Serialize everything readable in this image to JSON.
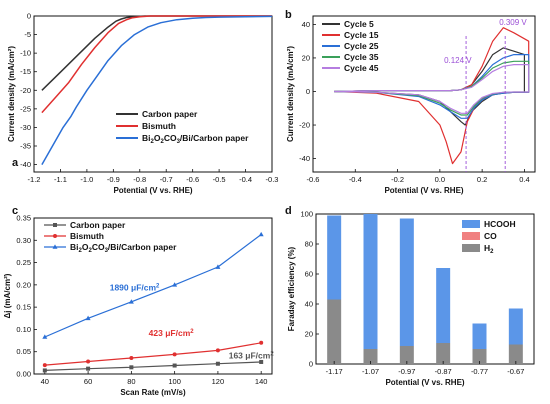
{
  "chart_data": [
    {
      "panel": "a",
      "type": "line",
      "xlabel": "Potential (V vs. RHE)",
      "ylabel": "Current density (mA/cm²)",
      "xlim": [
        -1.2,
        -0.3
      ],
      "ylim": [
        -42,
        0
      ],
      "xticks": [
        -1.2,
        -1.1,
        -1.0,
        -0.9,
        -0.8,
        -0.7,
        -0.6,
        -0.5,
        -0.4,
        -0.3
      ],
      "xtick_labels": [
        "-1.2",
        "-1.1",
        "-1.0",
        "-0.9",
        "-0.8",
        "-0.7",
        "-0.6",
        "-0.5",
        "-0.4",
        "-0.3"
      ],
      "yticks": [
        0,
        -5,
        -10,
        -15,
        -20,
        -25,
        -30,
        -35,
        -40
      ],
      "ytick_labels": [
        "0",
        "-5",
        "-10",
        "-15",
        "-20",
        "-25",
        "-30",
        "-35",
        "-40"
      ],
      "legend_position": "bottom-right",
      "series": [
        {
          "name": "Carbon paper",
          "color": "#333333",
          "x": [
            -1.17,
            -1.12,
            -1.07,
            -1.02,
            -0.97,
            -0.92,
            -0.89,
            -0.87,
            -0.85,
            -0.82,
            -0.78,
            -0.7,
            -0.6,
            -0.5,
            -0.4,
            -0.3
          ],
          "y": [
            -20,
            -16.5,
            -13,
            -9.5,
            -6,
            -3,
            -1.4,
            -0.8,
            -0.4,
            -0.15,
            0,
            0,
            0,
            0,
            0,
            0
          ]
        },
        {
          "name": "Bismuth",
          "color": "#e03030",
          "x": [
            -1.17,
            -1.12,
            -1.07,
            -1.02,
            -0.97,
            -0.92,
            -0.88,
            -0.85,
            -0.83,
            -0.8,
            -0.76,
            -0.7,
            -0.6,
            -0.5,
            -0.4,
            -0.3
          ],
          "y": [
            -26,
            -22,
            -18,
            -13,
            -8.5,
            -4.5,
            -2,
            -1,
            -0.5,
            -0.2,
            0,
            0,
            0,
            0,
            0,
            0
          ]
        },
        {
          "name": "Bi2O2CO3/Bi/Carbon paper",
          "color": "#2a6fd6",
          "x": [
            -1.17,
            -1.13,
            -1.09,
            -1.06,
            -1.04,
            -1.0,
            -0.96,
            -0.92,
            -0.87,
            -0.82,
            -0.77,
            -0.72,
            -0.66,
            -0.6,
            -0.55,
            -0.5,
            -0.4,
            -0.3
          ],
          "y": [
            -40,
            -35,
            -30,
            -27,
            -24.5,
            -20,
            -16,
            -12,
            -8,
            -5,
            -3,
            -1.8,
            -1,
            -0.6,
            -0.4,
            -0.3,
            -0.2,
            -0.1
          ]
        }
      ],
      "legend": [
        {
          "text": "Carbon paper"
        },
        {
          "text": "Bismuth"
        },
        {
          "prefix": "Bi",
          "s1": "2",
          "mid1": "O",
          "s2": "2",
          "mid2": "CO",
          "s3": "3",
          "suffix": "/Bi/Carbon paper"
        }
      ]
    },
    {
      "panel": "b",
      "type": "line",
      "xlabel": "Potential (V vs. RHE)",
      "ylabel": "Current density (mA/cm²)",
      "xlim": [
        -0.6,
        0.45
      ],
      "ylim": [
        -48,
        45
      ],
      "xticks": [
        -0.6,
        -0.4,
        -0.2,
        0.0,
        0.2,
        0.4
      ],
      "xtick_labels": [
        "-0.6",
        "-0.4",
        "-0.2",
        "0.0",
        "0.2",
        "0.4"
      ],
      "yticks": [
        40,
        20,
        0,
        -20,
        -40
      ],
      "ytick_labels": [
        "40",
        "20",
        "0",
        "-20",
        "-40"
      ],
      "legend_position": "top-left",
      "vlines": [
        {
          "x": 0.124,
          "label": "0.124 V",
          "color": "#9b4fd6"
        },
        {
          "x": 0.309,
          "label": "0.309 V",
          "color": "#9b4fd6"
        }
      ],
      "series": [
        {
          "name": "Cycle 5",
          "color": "#333333",
          "x": [
            -0.5,
            -0.3,
            -0.1,
            0.0,
            0.05,
            0.1,
            0.12,
            0.15,
            0.2,
            0.25,
            0.3,
            0.35,
            0.4,
            0.4,
            0.35,
            0.3,
            0.25,
            0.2,
            0.15,
            0.1,
            0.05,
            0.0,
            -0.1,
            -0.3,
            -0.5
          ],
          "y": [
            0,
            -0.5,
            -2,
            -6,
            -12,
            -18,
            -20,
            -12,
            -6,
            -2,
            -1,
            -0.5,
            -0.5,
            22,
            24,
            26,
            22,
            12,
            4,
            1,
            0.5,
            0.5,
            0.5,
            0.5,
            0
          ]
        },
        {
          "name": "Cycle 15",
          "color": "#e03030",
          "x": [
            -0.5,
            -0.3,
            -0.1,
            0.0,
            0.03,
            0.06,
            0.1,
            0.13,
            0.17,
            0.22,
            0.28,
            0.35,
            0.42,
            0.42,
            0.35,
            0.3,
            0.25,
            0.2,
            0.15,
            0.1,
            0.05,
            0.0,
            -0.1,
            -0.3,
            -0.5
          ],
          "y": [
            0,
            -1,
            -6,
            -20,
            -30,
            -43,
            -36,
            -18,
            -8,
            -3,
            -1,
            -0.5,
            -0.5,
            30,
            35,
            38,
            30,
            15,
            4,
            1,
            0.5,
            0.5,
            0.5,
            0.5,
            0
          ]
        },
        {
          "name": "Cycle 25",
          "color": "#2a6fd6",
          "x": [
            -0.5,
            -0.3,
            -0.1,
            0.0,
            0.05,
            0.1,
            0.13,
            0.16,
            0.2,
            0.25,
            0.3,
            0.35,
            0.42,
            0.42,
            0.35,
            0.3,
            0.25,
            0.2,
            0.15,
            0.1,
            0.05,
            0.0,
            -0.1,
            -0.3,
            -0.5
          ],
          "y": [
            0,
            -0.5,
            -3,
            -8,
            -12,
            -16,
            -16,
            -10,
            -5,
            -2,
            -1,
            -0.5,
            -0.5,
            22,
            22,
            20,
            16,
            9,
            3,
            1,
            0.5,
            0.5,
            0.5,
            0.5,
            0
          ]
        },
        {
          "name": "Cycle 35",
          "color": "#3aa05a",
          "x": [
            -0.5,
            -0.3,
            -0.1,
            0.0,
            0.05,
            0.1,
            0.13,
            0.16,
            0.2,
            0.25,
            0.3,
            0.35,
            0.42,
            0.42,
            0.35,
            0.3,
            0.25,
            0.2,
            0.15,
            0.1,
            0.05,
            0.0,
            -0.1,
            -0.3,
            -0.5
          ],
          "y": [
            0,
            -0.5,
            -2.5,
            -7,
            -11,
            -14,
            -14,
            -9,
            -4,
            -1.5,
            -0.5,
            -0.3,
            -0.3,
            18,
            18,
            17,
            14,
            8,
            3,
            1,
            0.5,
            0.5,
            0.5,
            0.5,
            0
          ]
        },
        {
          "name": "Cycle 45",
          "color": "#b57de0",
          "x": [
            -0.5,
            -0.3,
            -0.1,
            0.0,
            0.05,
            0.1,
            0.13,
            0.16,
            0.2,
            0.25,
            0.3,
            0.35,
            0.42,
            0.42,
            0.35,
            0.3,
            0.25,
            0.2,
            0.15,
            0.1,
            0.05,
            0.0,
            -0.1,
            -0.3,
            -0.5
          ],
          "y": [
            0,
            -0.5,
            -2,
            -6,
            -10,
            -13,
            -13,
            -8,
            -3.5,
            -1.2,
            -0.5,
            -0.3,
            -0.3,
            16,
            16,
            15,
            12,
            7,
            2.5,
            1,
            0.5,
            0.5,
            0.5,
            0.5,
            0
          ]
        }
      ]
    },
    {
      "panel": "c",
      "type": "line",
      "xlabel": "Scan Rate (mV/s)",
      "ylabel": "Δj (mA/cm²)",
      "xlim": [
        35,
        145
      ],
      "ylim": [
        0.0,
        0.35
      ],
      "xticks": [
        40,
        60,
        80,
        100,
        120,
        140
      ],
      "xtick_labels": [
        "40",
        "60",
        "80",
        "100",
        "120",
        "140"
      ],
      "yticks": [
        0.0,
        0.05,
        0.1,
        0.15,
        0.2,
        0.25,
        0.3,
        0.35
      ],
      "ytick_labels": [
        "0.00",
        "0.05",
        "0.10",
        "0.15",
        "0.20",
        "0.25",
        "0.30",
        "0.35"
      ],
      "legend_position": "top-left",
      "series": [
        {
          "name": "Carbon paper",
          "color": "#555555",
          "marker": "square",
          "x": [
            40,
            60,
            80,
            100,
            120,
            140
          ],
          "y": [
            0.008,
            0.012,
            0.015,
            0.019,
            0.023,
            0.027
          ]
        },
        {
          "name": "Bismuth",
          "color": "#e03030",
          "marker": "circle",
          "x": [
            40,
            60,
            80,
            100,
            120,
            140
          ],
          "y": [
            0.02,
            0.028,
            0.036,
            0.044,
            0.053,
            0.07
          ]
        },
        {
          "name": "Bi2O2CO3/Bi/Carbon paper",
          "color": "#2a6fd6",
          "marker": "triangle",
          "x": [
            40,
            60,
            80,
            100,
            120,
            140
          ],
          "y": [
            0.083,
            0.125,
            0.162,
            0.2,
            0.24,
            0.313
          ]
        }
      ],
      "legend": [
        {
          "text": "Carbon paper"
        },
        {
          "text": "Bismuth"
        },
        {
          "prefix": "Bi",
          "s1": "2",
          "mid1": "O",
          "s2": "2",
          "mid2": "CO",
          "s3": "3",
          "suffix": "/Bi/Carbon paper"
        }
      ],
      "annotations": [
        {
          "value": "1890 μF/cm",
          "sup": "2",
          "color": "#2a6fd6",
          "x": 70,
          "y": 0.187
        },
        {
          "value": "423 μF/cm",
          "sup": "2",
          "color": "#e03030",
          "x": 88,
          "y": 0.085
        },
        {
          "value": "163 μF/cm",
          "sup": "2",
          "color": "#555555",
          "x": 125,
          "y": 0.035
        }
      ]
    },
    {
      "panel": "d",
      "type": "bar",
      "stacked": true,
      "xlabel": "Potential (V vs. RHE)",
      "ylabel": "Faraday efficiency (%)",
      "ylim": [
        0,
        100
      ],
      "yticks": [
        0,
        20,
        40,
        60,
        80,
        100
      ],
      "ytick_labels": [
        "0",
        "20",
        "40",
        "60",
        "80",
        "100"
      ],
      "categories": [
        "-1.17",
        "-1.07",
        "-0.97",
        "-0.87",
        "-0.77",
        "-0.67"
      ],
      "legend_position": "top-right",
      "series": [
        {
          "name": "H2",
          "color": "#8a8a8a",
          "values": [
            43,
            10,
            12,
            14,
            10,
            13
          ]
        },
        {
          "name": "CO",
          "color": "#f08080",
          "values": [
            0,
            0,
            0,
            0,
            0,
            0
          ]
        },
        {
          "name": "HCOOH",
          "color": "#5b96e8",
          "values": [
            56,
            90,
            85,
            50,
            17,
            24
          ]
        }
      ],
      "legend": [
        {
          "text": "HCOOH"
        },
        {
          "text": "CO"
        },
        {
          "prefix": "H",
          "s1": "2"
        }
      ]
    }
  ]
}
